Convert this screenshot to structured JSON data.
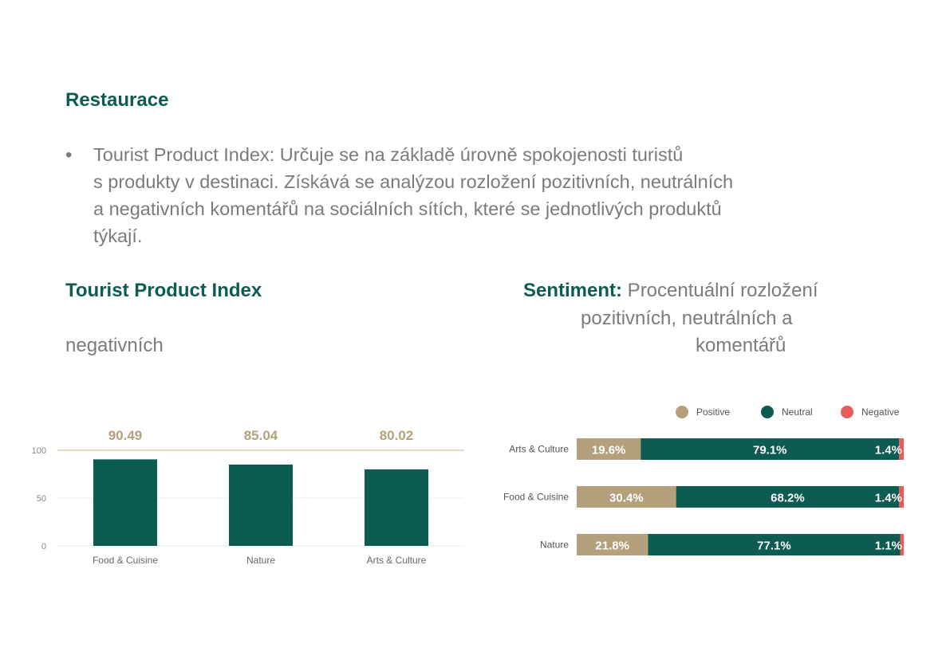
{
  "section_title": "Restaurace",
  "bullet": {
    "marker": "•",
    "lines": [
      "Tourist Product Index: Určuje se na základě úrovně spokojenosti turistů",
      "s produkty v destinaci. Získává se analýzou rozložení pozitivních, neutrálních",
      "a negativních komentářů na sociálních sítích, které se jednotlivých produktů",
      "týkají."
    ]
  },
  "tpi": {
    "title": "Tourist Product Index",
    "subtitle_fragment": "negativních"
  },
  "sentiment": {
    "label_bold": "Sentiment:",
    "line1_rest": " Procentuální rozložení",
    "line2": "pozitivních, neutrálních a",
    "line3": "komentářů"
  },
  "colors": {
    "brand_green": "#0d5c52",
    "positive": "#b5a07c",
    "neutral": "#0d5c52",
    "negative": "#e85b5b",
    "text_gray": "#7b7b7b"
  },
  "chart_data": [
    {
      "type": "bar",
      "categories": [
        "Food & Cuisine",
        "Nature",
        "Arts & Culture"
      ],
      "values": [
        90.49,
        85.04,
        80.02
      ],
      "value_labels": [
        "90.49",
        "85.04",
        "80.02"
      ],
      "y_ticks": [
        "0",
        "50",
        "100"
      ],
      "ylim": [
        0,
        100
      ],
      "grid": true
    },
    {
      "type": "bar",
      "orientation": "horizontal-stacked",
      "categories": [
        "Arts & Culture",
        "Food & Cuisine",
        "Nature"
      ],
      "series": [
        {
          "name": "Positive",
          "values": [
            19.6,
            30.4,
            21.8
          ],
          "labels": [
            "19.6%",
            "30.4%",
            "21.8%"
          ]
        },
        {
          "name": "Neutral",
          "values": [
            79.1,
            68.2,
            77.1
          ],
          "labels": [
            "79.1%",
            "68.2%",
            "77.1%"
          ]
        },
        {
          "name": "Negative",
          "values": [
            1.4,
            1.4,
            1.1
          ],
          "labels": [
            "1.4%",
            "1.4%",
            "1.1%"
          ]
        }
      ],
      "legend_position": "top-right"
    }
  ]
}
